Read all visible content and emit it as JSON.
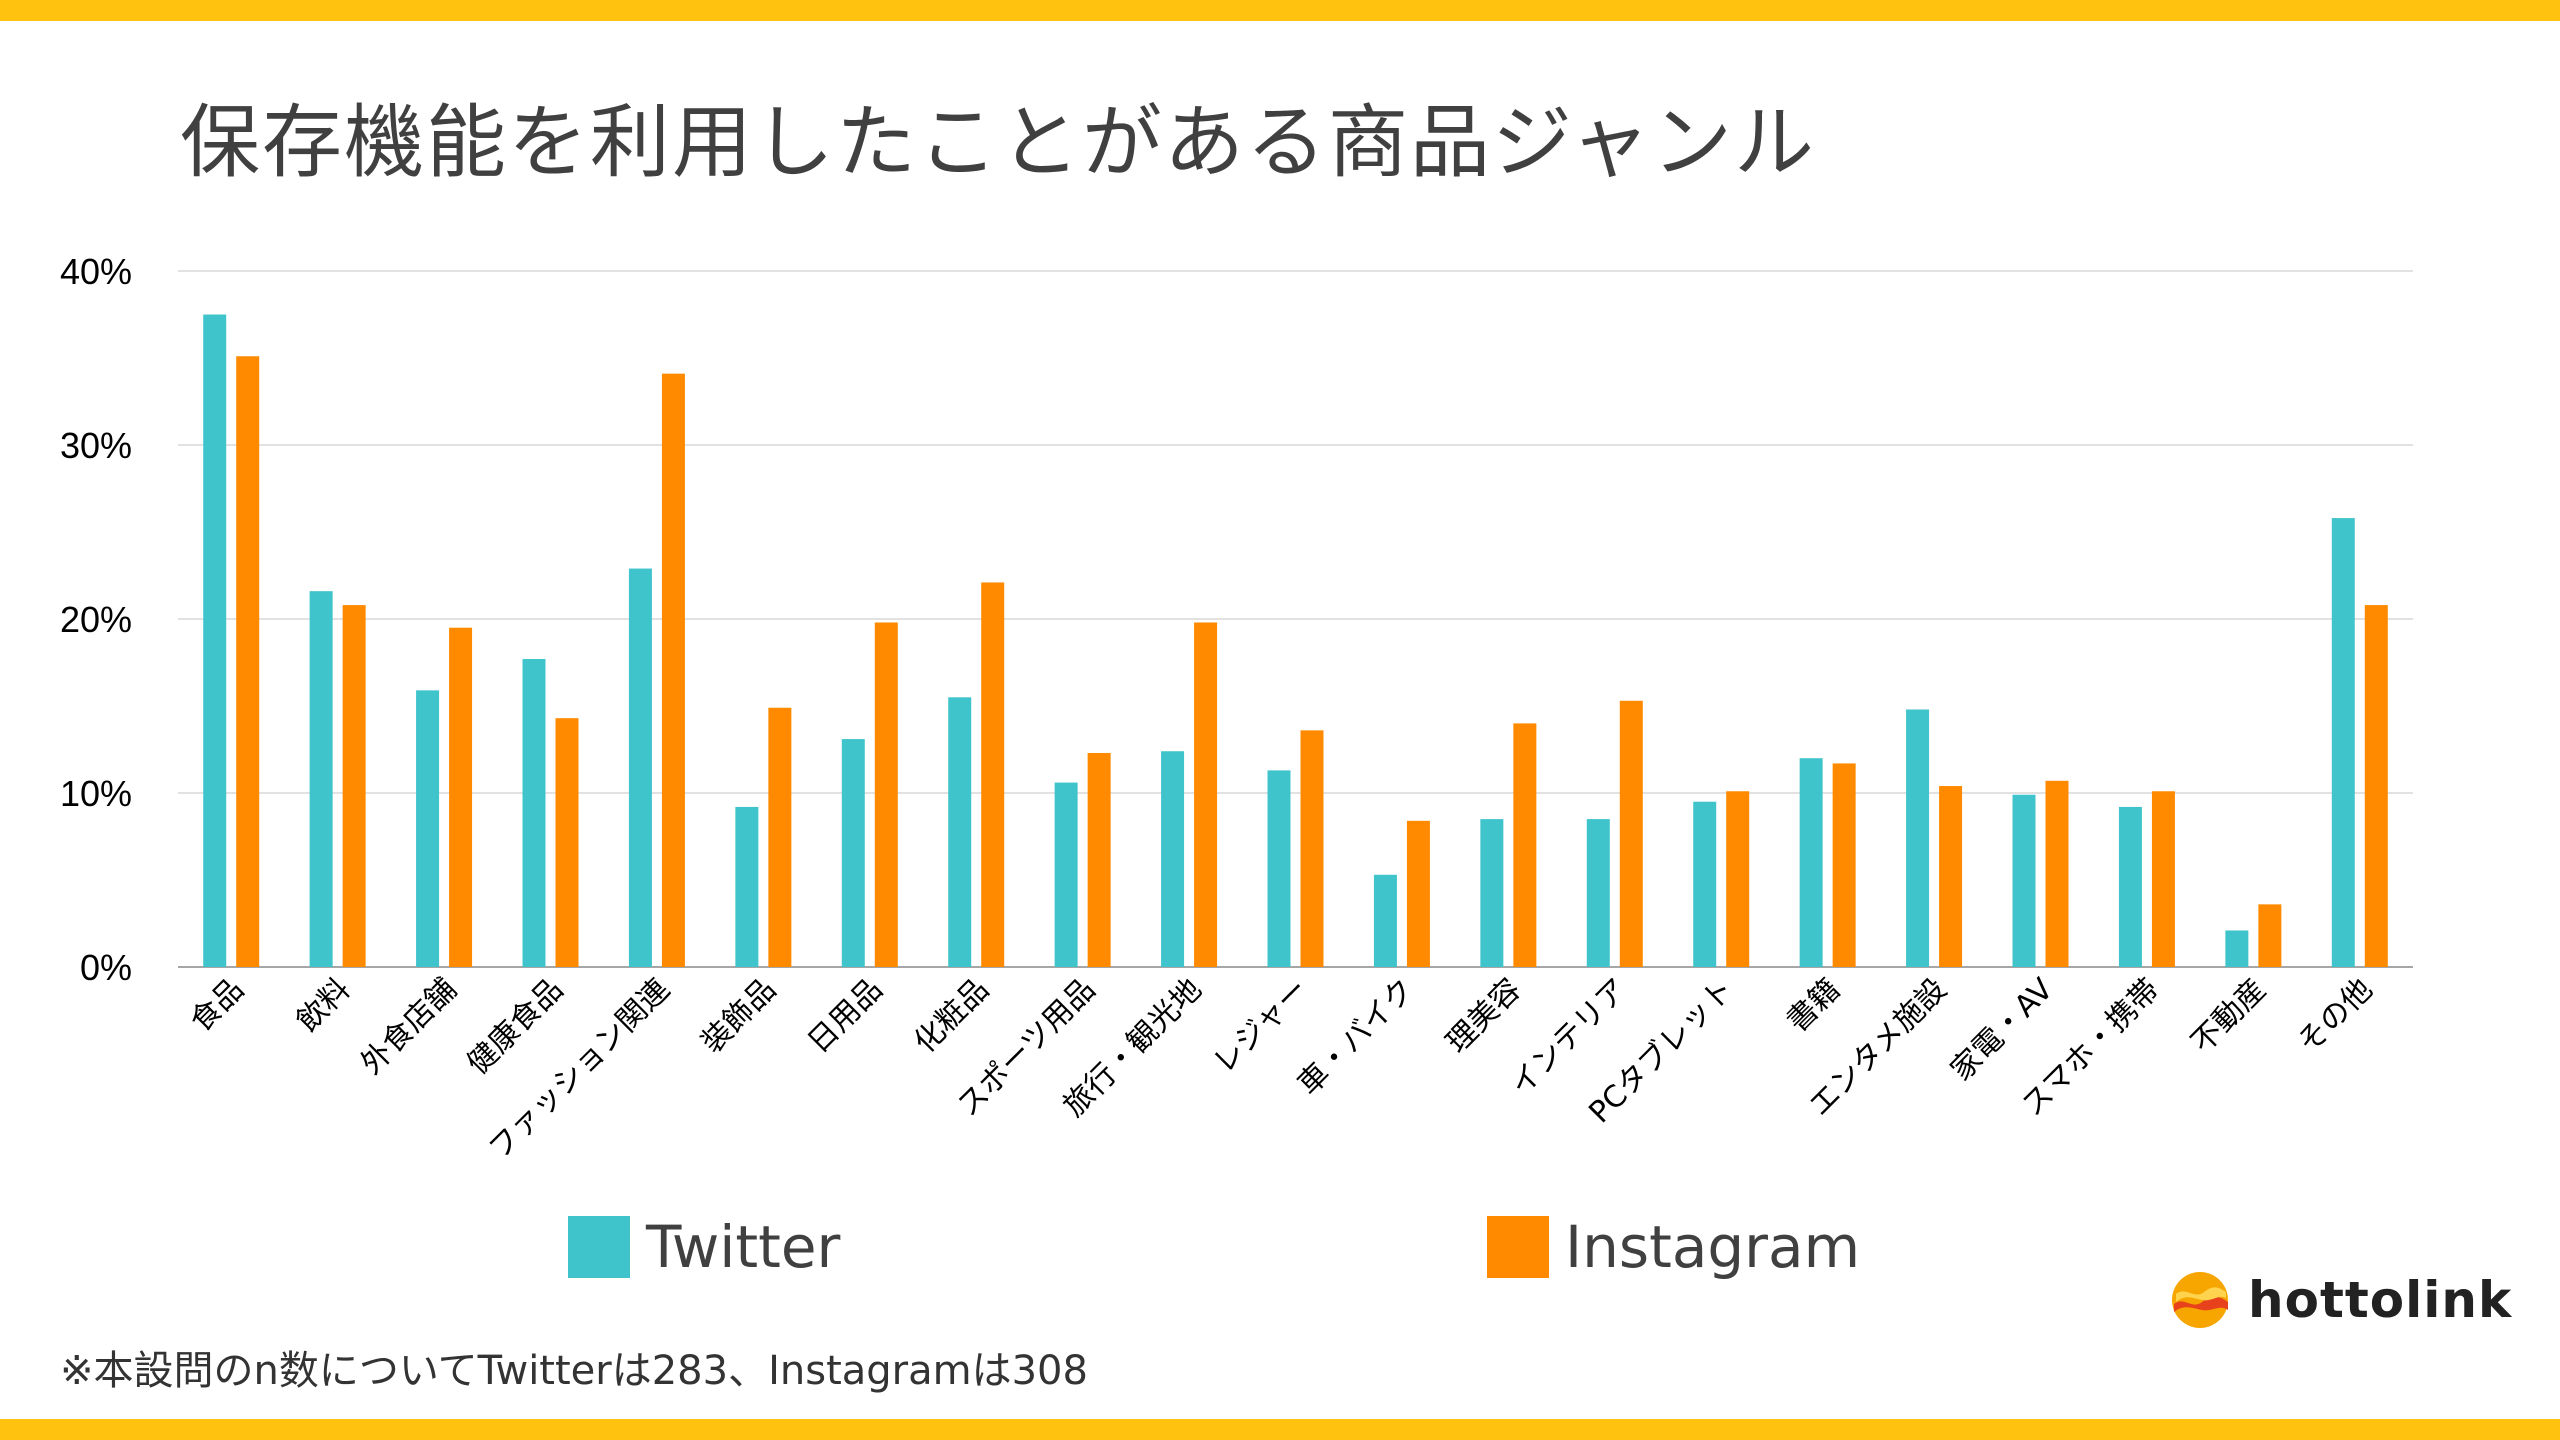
{
  "title": "保存機能を利用したことがある商品ジャンル",
  "footnote": "※本設問のn数についてTwitterは283、Instagramは308",
  "logo": {
    "text": "hottolink",
    "icon": "hottolink-logo-icon"
  },
  "colors": {
    "accent": "#FFC20E",
    "twitter": "#40C4CC",
    "instagram": "#FF8A00",
    "grid": "#D9D9D9"
  },
  "chart_data": {
    "type": "bar",
    "title": "保存機能を利用したことがある商品ジャンル",
    "xlabel": "",
    "ylabel": "",
    "ylim": [
      0,
      40
    ],
    "yticks": [
      "0%",
      "10%",
      "20%",
      "30%",
      "40%"
    ],
    "grid": true,
    "legend": "bottom",
    "categories": [
      "食品",
      "飲料",
      "外食店舗",
      "健康食品",
      "ファッション関連",
      "装飾品",
      "日用品",
      "化粧品",
      "スポーツ用品",
      "旅行・観光地",
      "レジャー",
      "車・バイク",
      "理美容",
      "インテリア",
      "PCタブレット",
      "書籍",
      "エンタメ施設",
      "家電・AV",
      "スマホ・携帯",
      "不動産",
      "その他"
    ],
    "series": [
      {
        "name": "Twitter",
        "color": "#40C4CC",
        "values": [
          37.5,
          21.6,
          15.9,
          17.7,
          22.9,
          9.2,
          13.1,
          15.5,
          10.6,
          12.4,
          11.3,
          5.3,
          8.5,
          8.5,
          9.5,
          12.0,
          14.8,
          9.9,
          9.2,
          2.1,
          25.8
        ]
      },
      {
        "name": "Instagram",
        "color": "#FF8A00",
        "values": [
          35.1,
          20.8,
          19.5,
          14.3,
          34.1,
          14.9,
          19.8,
          22.1,
          12.3,
          19.8,
          13.6,
          8.4,
          14.0,
          15.3,
          10.1,
          11.7,
          10.4,
          10.7,
          10.1,
          3.6,
          20.8
        ]
      }
    ]
  }
}
